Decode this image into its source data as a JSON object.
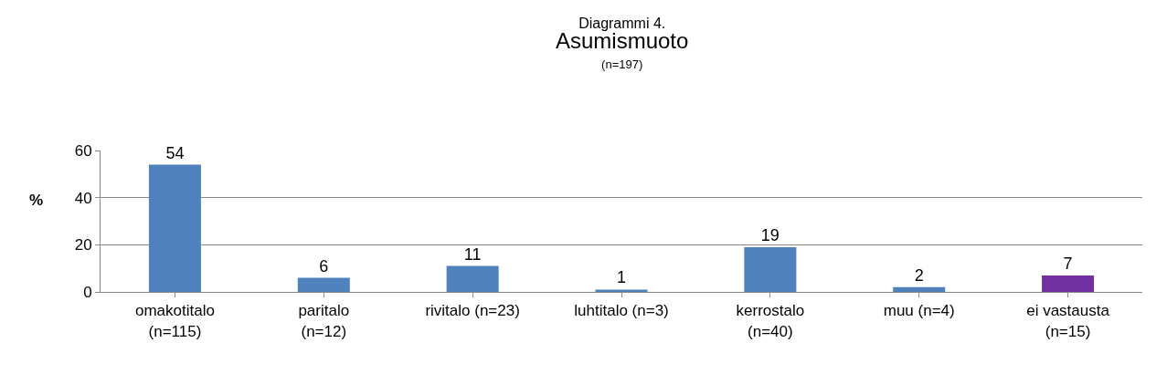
{
  "chart_data": {
    "type": "bar",
    "title": "Diagrammi 4.\nAsumismuoto",
    "subtitle": "(n=197)",
    "ylabel": "%",
    "categories": [
      "omakotitalo\n(n=115)",
      "paritalo\n(n=12)",
      "rivitalo (n=23)",
      "luhtitalo (n=3)",
      "kerrostalo\n(n=40)",
      "muu (n=4)",
      "ei vastausta\n(n=15)"
    ],
    "values": [
      54,
      6,
      11,
      1,
      19,
      2,
      7
    ],
    "colors": [
      "#4f81bd",
      "#4f81bd",
      "#4f81bd",
      "#4f81bd",
      "#4f81bd",
      "#4f81bd",
      "#7030a0"
    ],
    "ylim": [
      0,
      60
    ],
    "yticks": [
      0,
      20,
      40,
      60
    ],
    "grid": "y",
    "data_labels": true
  }
}
